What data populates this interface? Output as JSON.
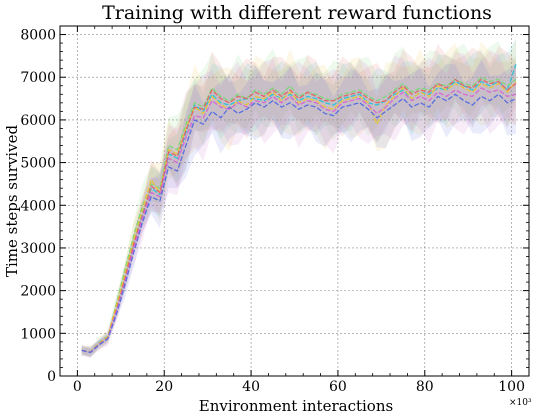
{
  "chart_data": {
    "type": "line",
    "title": "Training with different reward functions",
    "xlabel": "Environment interactions",
    "ylabel": "Time steps survived",
    "x_multiplier": "×10³",
    "xlim": [
      -4,
      104
    ],
    "ylim": [
      0,
      8200
    ],
    "xticks": [
      0,
      20,
      40,
      60,
      80,
      100
    ],
    "yticks": [
      0,
      1000,
      2000,
      3000,
      4000,
      5000,
      6000,
      7000,
      8000
    ],
    "grid": true,
    "legend": "none",
    "x": [
      1,
      3,
      5,
      7,
      9,
      11,
      13,
      15,
      17,
      19,
      21,
      23,
      25,
      27,
      29,
      31,
      33,
      35,
      37,
      39,
      41,
      43,
      45,
      47,
      49,
      51,
      53,
      55,
      57,
      59,
      61,
      63,
      65,
      67,
      69,
      71,
      73,
      75,
      77,
      79,
      81,
      83,
      85,
      87,
      89,
      91,
      93,
      95,
      97,
      99,
      101
    ],
    "series": [
      {
        "color": "#2ec4d6",
        "band": 650,
        "values": [
          600,
          560,
          780,
          930,
          1600,
          2300,
          3100,
          3800,
          4400,
          4250,
          5200,
          5100,
          5700,
          6350,
          6200,
          6600,
          6400,
          6350,
          6450,
          6500,
          6500,
          6450,
          6600,
          6500,
          6600,
          6450,
          6550,
          6500,
          6400,
          6350,
          6500,
          6550,
          6600,
          6400,
          6350,
          6450,
          6600,
          6700,
          6500,
          6650,
          6600,
          6750,
          6700,
          6900,
          6800,
          6700,
          6900,
          6800,
          6900,
          6700,
          7300
        ]
      },
      {
        "color": "#7cd67c",
        "band": 700,
        "values": [
          600,
          570,
          760,
          900,
          1700,
          2500,
          3300,
          4000,
          4500,
          4400,
          5400,
          5300,
          5900,
          6400,
          6300,
          6750,
          6550,
          6450,
          6600,
          6500,
          6700,
          6600,
          6750,
          6600,
          6800,
          6550,
          6650,
          6600,
          6500,
          6450,
          6600,
          6650,
          6700,
          6550,
          6450,
          6550,
          6700,
          6850,
          6650,
          6750,
          6700,
          6850,
          6800,
          6950,
          6850,
          6800,
          7000,
          6900,
          6950,
          6800,
          6950
        ]
      },
      {
        "color": "#e8c33a",
        "band": 750,
        "values": [
          600,
          565,
          770,
          920,
          1650,
          2400,
          3200,
          3900,
          4600,
          4300,
          5300,
          5200,
          5800,
          6300,
          6150,
          6550,
          6350,
          6250,
          6450,
          6350,
          6550,
          6500,
          6650,
          6450,
          6650,
          6400,
          6500,
          6450,
          6300,
          6250,
          6450,
          6500,
          6550,
          6400,
          5900,
          6350,
          6550,
          6750,
          6500,
          6650,
          6550,
          6800,
          6700,
          6850,
          6750,
          6650,
          6850,
          6750,
          6850,
          6650,
          6900
        ]
      },
      {
        "color": "#e06666",
        "band": 700,
        "values": [
          600,
          560,
          750,
          890,
          1550,
          2300,
          3100,
          3750,
          4450,
          4300,
          5250,
          5150,
          5750,
          6300,
          6250,
          6700,
          6500,
          6400,
          6550,
          6500,
          6650,
          6550,
          6700,
          6550,
          6700,
          6500,
          6650,
          6550,
          6450,
          6450,
          6550,
          6600,
          6650,
          6500,
          6400,
          6450,
          6650,
          6800,
          6600,
          6700,
          6650,
          6850,
          6750,
          6950,
          6800,
          6750,
          6950,
          6850,
          6900,
          6700,
          6850
        ]
      },
      {
        "color": "#d46ad4",
        "band": 750,
        "values": [
          600,
          555,
          740,
          880,
          1500,
          2200,
          3000,
          3700,
          4300,
          4200,
          5100,
          5000,
          5600,
          6100,
          6050,
          6450,
          6300,
          6250,
          6400,
          6300,
          6450,
          6400,
          6550,
          6400,
          6550,
          6350,
          6450,
          6400,
          6250,
          6200,
          6400,
          6450,
          6500,
          6350,
          6150,
          6300,
          6500,
          6650,
          6450,
          6550,
          6450,
          6650,
          6550,
          6700,
          6600,
          6550,
          6750,
          6650,
          6700,
          6550,
          6600
        ]
      },
      {
        "color": "#5a6ee0",
        "band": 650,
        "values": [
          600,
          550,
          730,
          870,
          1450,
          2150,
          2900,
          3600,
          4200,
          4100,
          4900,
          4800,
          5400,
          6000,
          5900,
          6200,
          6050,
          6300,
          6150,
          6250,
          6400,
          6300,
          6450,
          6300,
          6400,
          6250,
          6350,
          6300,
          6150,
          6100,
          6300,
          6350,
          6400,
          6250,
          6050,
          6200,
          6350,
          6500,
          6300,
          6400,
          6300,
          6550,
          6450,
          6600,
          6450,
          6350,
          6550,
          6450,
          6600,
          6400,
          6500
        ]
      }
    ]
  }
}
